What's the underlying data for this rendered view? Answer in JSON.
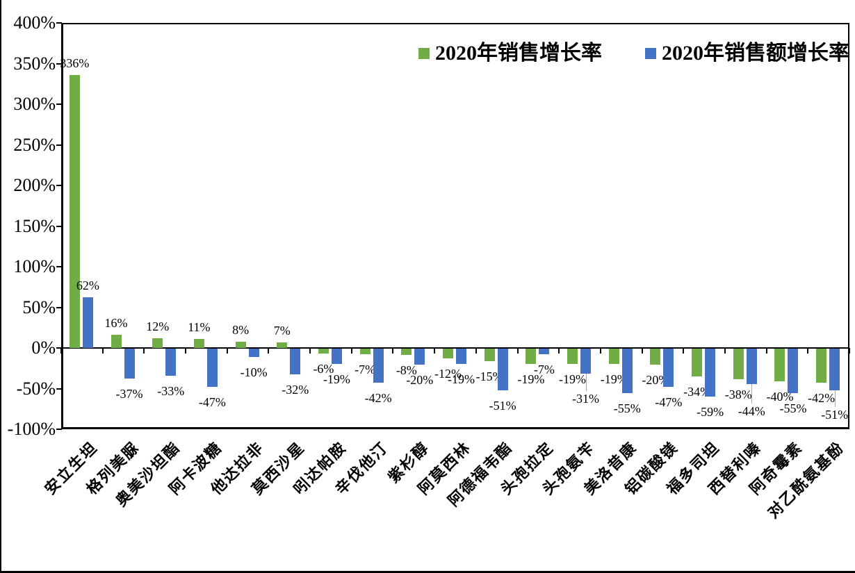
{
  "legend": [
    {
      "label": "2020年销售增长率",
      "color": "#70AD47"
    },
    {
      "label": "2020年销售额增长率",
      "color": "#4472C4"
    }
  ],
  "colors": {
    "green_series": "#70AD47",
    "blue_series": "#4472C4",
    "axis": "#000000",
    "leader_line": "#A6A6A6"
  },
  "chart_data": {
    "type": "bar",
    "title": "",
    "xlabel": "",
    "ylabel": "",
    "ylim": [
      -100,
      400
    ],
    "ytick_step": 50,
    "ytick_labels": [
      "400%",
      "350%",
      "300%",
      "250%",
      "200%",
      "150%",
      "100%",
      "50%",
      "0%",
      "-50%",
      "-100%"
    ],
    "grid": false,
    "legend_position": "top-right-inside",
    "categories": [
      "安立生坦",
      "格列美脲",
      "奥美沙坦酯",
      "阿卡波糖",
      "他达拉非",
      "莫西沙星",
      "吲达帕胺",
      "辛伐他汀",
      "紫杉醇",
      "阿莫西林",
      "阿德福韦酯",
      "头孢拉定",
      "头孢氨苄",
      "美洛昔康",
      "铝碳酸镁",
      "福多司坦",
      "西替利嗪",
      "阿奇霉素",
      "对乙酰氨基酚"
    ],
    "series": [
      {
        "name": "2020年销售增长率",
        "color": "#70AD47",
        "values": [
          336,
          16,
          12,
          11,
          8,
          7,
          -6,
          -7,
          -8,
          -12,
          -15,
          -19,
          -19,
          -19,
          -20,
          -34,
          -38,
          -40,
          -42
        ],
        "data_labels": [
          "336%",
          "16%",
          "12%",
          "11%",
          "8%",
          "7%",
          "-6%",
          "-7%",
          "-8%",
          "-12%",
          "-15%",
          "-19%",
          "-19%",
          "-19%",
          "-20%",
          "-34%",
          "-38%",
          "-40%",
          "-42%"
        ]
      },
      {
        "name": "2020年销售额增长率",
        "color": "#4472C4",
        "values": [
          62,
          -37,
          -33,
          -47,
          -10,
          -32,
          -19,
          -42,
          -20,
          -19,
          -51,
          -7,
          -31,
          -55,
          -47,
          -59,
          -44,
          -55,
          -51
        ],
        "data_labels": [
          "62%",
          "-37%",
          "-33%",
          "-47%",
          "-10%",
          "-32%",
          "-19%",
          "-42%",
          "-20%",
          "-19%",
          "-51%",
          "-7%",
          "-31%",
          "-55%",
          "-47%",
          "-59%",
          "-44%",
          "-55%",
          "-51%"
        ]
      }
    ],
    "label_callouts": [
      {
        "series_index": 1,
        "category_index": 12,
        "label_gap": 28
      },
      {
        "series_index": 1,
        "category_index": 16,
        "label_gap": 31
      },
      {
        "series_index": 1,
        "category_index": 18,
        "label_gap": 27
      }
    ]
  }
}
